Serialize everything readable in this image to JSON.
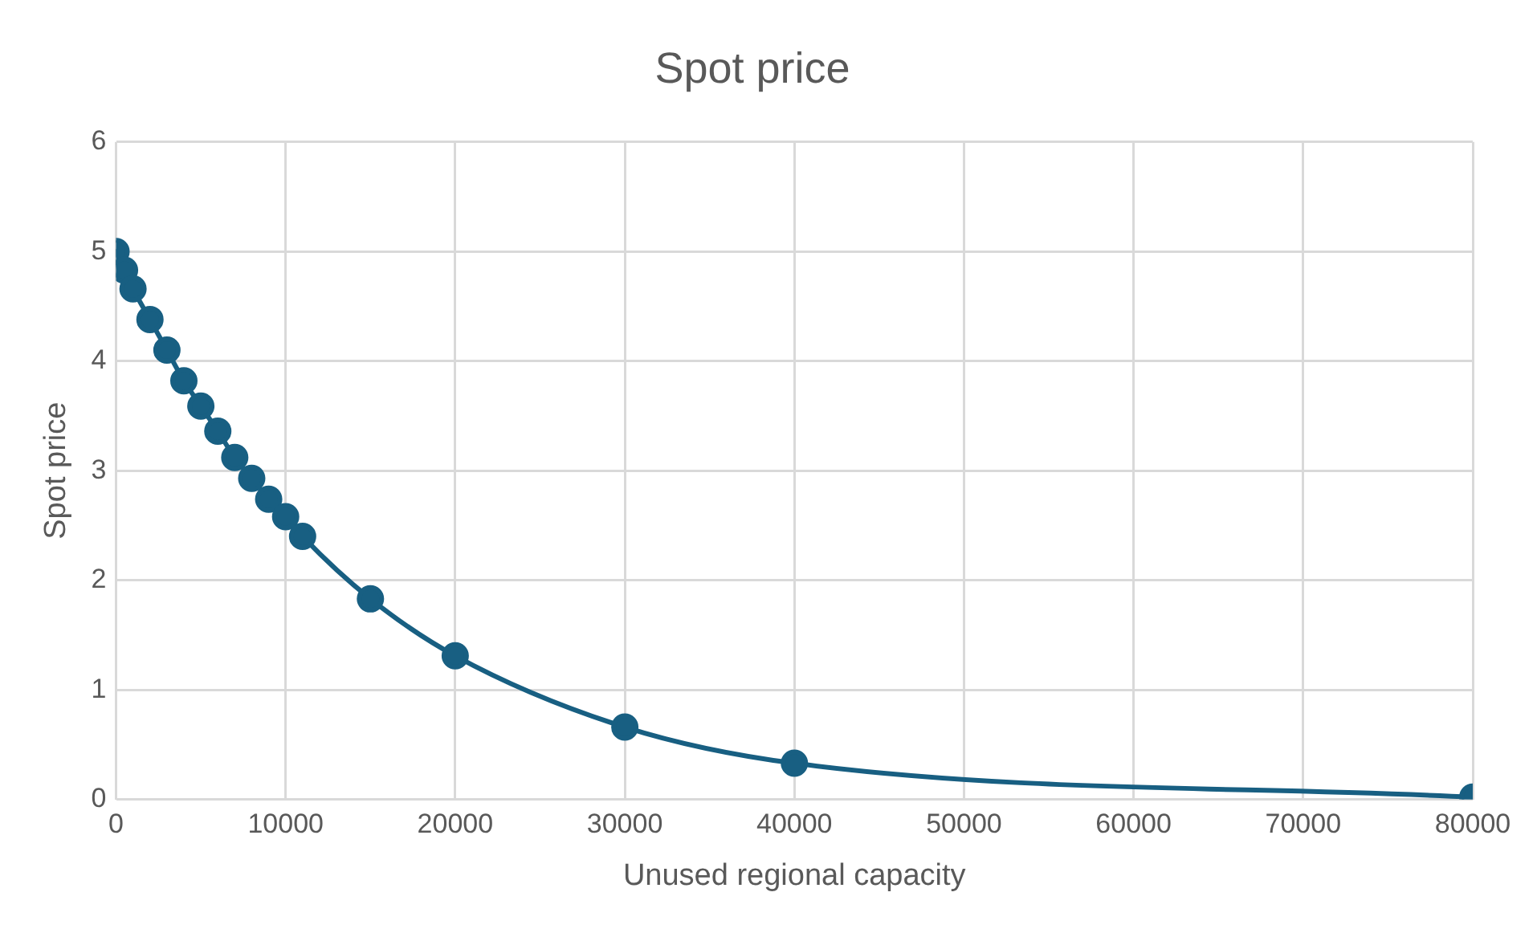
{
  "chart_data": {
    "type": "line",
    "title": "Spot price",
    "xlabel": "Unused regional capacity",
    "ylabel": "Spot price",
    "x": [
      0,
      500,
      1000,
      2000,
      3000,
      4000,
      5000,
      6000,
      7000,
      8000,
      9000,
      10000,
      11000,
      15000,
      20000,
      30000,
      40000,
      80000
    ],
    "series": [
      {
        "color": "#185f82",
        "values": [
          5.0,
          4.83,
          4.66,
          4.38,
          4.1,
          3.82,
          3.59,
          3.36,
          3.12,
          2.93,
          2.74,
          2.58,
          2.4,
          1.83,
          1.31,
          0.66,
          0.33,
          0.02
        ]
      }
    ],
    "xlim": [
      0,
      80000
    ],
    "xticks": [
      0,
      10000,
      20000,
      30000,
      40000,
      50000,
      60000,
      70000,
      80000
    ],
    "ylim": [
      0,
      6
    ],
    "yticks": [
      0,
      1,
      2,
      3,
      4,
      5,
      6
    ],
    "grid": true,
    "legend": false,
    "marker": "circle",
    "line_style": "solid"
  }
}
